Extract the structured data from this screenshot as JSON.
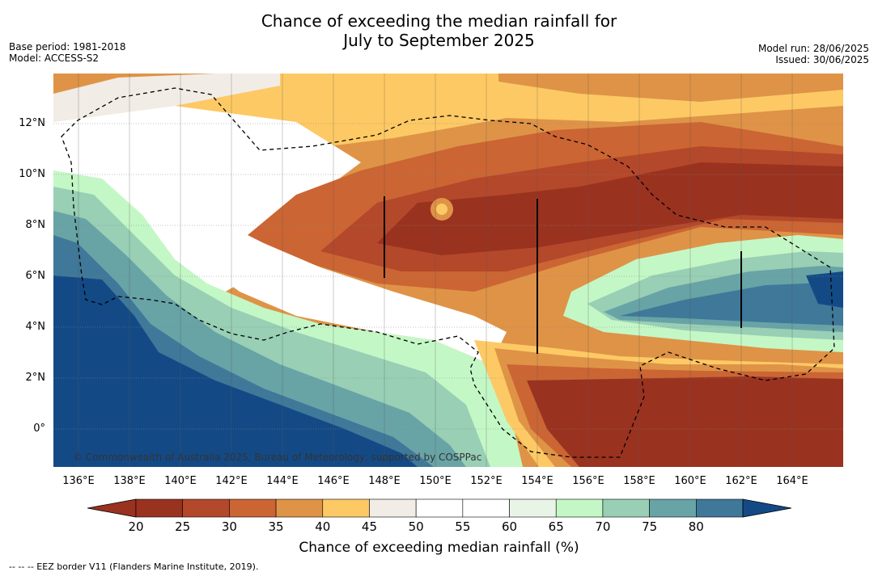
{
  "title_line1": "Chance of exceeding the median rainfall for",
  "title_line2": "July to September 2025",
  "meta_left": [
    "Base period: 1981-2018",
    "Model: ACCESS-S2"
  ],
  "meta_right": [
    "Model run: 28/06/2025",
    "Issued: 30/06/2025"
  ],
  "lat_labels": [
    "12°N",
    "10°N",
    "8°N",
    "6°N",
    "4°N",
    "2°N",
    "0°"
  ],
  "lon_labels": [
    "136°E",
    "138°E",
    "140°E",
    "142°E",
    "144°E",
    "146°E",
    "148°E",
    "150°E",
    "152°E",
    "154°E",
    "156°E",
    "158°E",
    "160°E",
    "162°E",
    "164°E"
  ],
  "copyright": "© Commonwealth of Australia 2025, Bureau of Meteorology, supported by COSPPac",
  "colorbar": {
    "ticks": [
      "20",
      "25",
      "30",
      "35",
      "40",
      "45",
      "50",
      "55",
      "60",
      "65",
      "70",
      "75",
      "80"
    ],
    "colors": [
      "#9a3220",
      "#b4482a",
      "#cb6533",
      "#df9347",
      "#fdc964",
      "#f1ece6",
      "#ffffff",
      "#ffffff",
      "#e8f5e6",
      "#c4f7c6",
      "#98cfb5",
      "#68a3a6",
      "#3f7899"
    ],
    "under_color": "#9a3220",
    "over_color": "#134a86",
    "title": "Chance of exceeding median rainfall (%)"
  },
  "footnote": "--  --  -- EEZ border V11 (Flanders Marine Institute, 2019)."
}
